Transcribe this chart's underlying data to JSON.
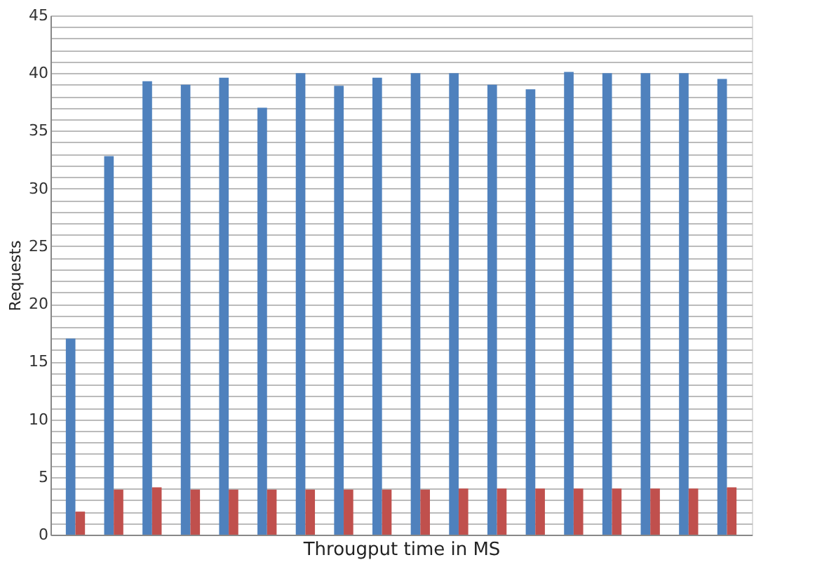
{
  "chart_data": {
    "type": "bar",
    "xlabel": "Througput time in MS",
    "ylabel": "Requests",
    "categories": [
      null,
      null,
      null,
      null,
      null,
      null,
      null,
      null,
      null,
      null,
      null,
      null,
      null,
      null,
      null,
      null,
      null,
      null
    ],
    "series": [
      {
        "color": "#4f81bd",
        "values": [
          17,
          32.8,
          39.3,
          39,
          39.6,
          37,
          40,
          38.9,
          39.6,
          40,
          40,
          39,
          38.6,
          40.1,
          40,
          40,
          40,
          39.5
        ]
      },
      {
        "color": "#c0504d",
        "values": [
          2,
          3.9,
          4.1,
          3.9,
          3.9,
          3.9,
          3.9,
          3.9,
          3.9,
          3.9,
          4,
          4,
          4,
          4,
          4,
          4,
          4,
          4.1
        ]
      }
    ],
    "ylim": [
      0,
      45
    ],
    "yticks": [
      0,
      {
        "value": 1,
        "label": null
      },
      {
        "value": 2,
        "label": null
      },
      {
        "value": 3,
        "label": null
      },
      {
        "value": 4,
        "label": null
      },
      5,
      {
        "value": 6,
        "label": null
      },
      {
        "value": 7,
        "label": null
      },
      {
        "value": 8,
        "label": null
      },
      {
        "value": 9,
        "label": null
      },
      10,
      {
        "value": 11,
        "label": null
      },
      {
        "value": 12,
        "label": null
      },
      {
        "value": 13,
        "label": null
      },
      {
        "value": 14,
        "label": null
      },
      15,
      {
        "value": 16,
        "label": null
      },
      {
        "value": 17,
        "label": null
      },
      {
        "value": 18,
        "label": null
      },
      {
        "value": 19,
        "label": null
      },
      20,
      {
        "value": 21,
        "label": null
      },
      {
        "value": 22,
        "label": null
      },
      {
        "value": 23,
        "label": null
      },
      {
        "value": 24,
        "label": null
      },
      25,
      {
        "value": 26,
        "label": null
      },
      {
        "value": 27,
        "label": null
      },
      {
        "value": 28,
        "label": null
      },
      {
        "value": 29,
        "label": null
      },
      30,
      {
        "value": 31,
        "label": null
      },
      {
        "value": 32,
        "label": null
      },
      {
        "value": 33,
        "label": null
      },
      {
        "value": 34,
        "label": null
      },
      35,
      {
        "value": 36,
        "label": null
      },
      {
        "value": 37,
        "label": null
      },
      {
        "value": 38,
        "label": null
      },
      {
        "value": 39,
        "label": null
      },
      40,
      {
        "value": 41,
        "label": null
      },
      {
        "value": 42,
        "label": null
      },
      {
        "value": 43,
        "label": null
      },
      {
        "value": 44,
        "label": null
      },
      45
    ],
    "grid": "y",
    "tick_labels": "y",
    "legend": false
  }
}
